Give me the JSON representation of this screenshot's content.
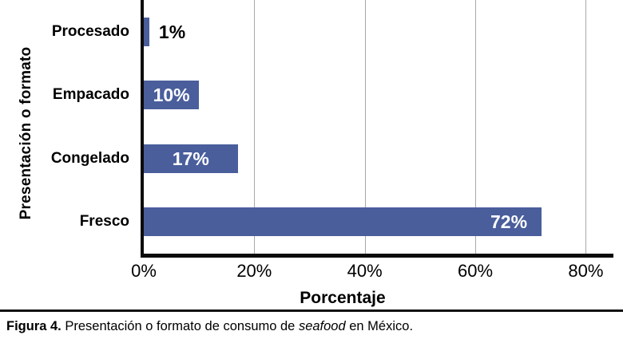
{
  "figure": {
    "caption": {
      "label": "Figura 4.",
      "text_before": " Presentación o formato de consumo de ",
      "italic_term": "seafood",
      "text_after": " en México."
    }
  },
  "chart_data": {
    "type": "bar",
    "orientation": "horizontal",
    "title": "",
    "categories": [
      "Procesado",
      "Empacado",
      "Congelado",
      "Fresco"
    ],
    "values": [
      1,
      10,
      17,
      72
    ],
    "value_labels": [
      "1%",
      "10%",
      "17%",
      "72%"
    ],
    "xlabel": "Porcentaje",
    "ylabel": "Presentación o formato",
    "x_ticks": [
      "0%",
      "20%",
      "40%",
      "60%",
      "80%"
    ],
    "x_tick_values": [
      0,
      20,
      40,
      60,
      80
    ],
    "xlim": [
      0,
      85
    ],
    "grid": "vertical gridlines at x ticks, behind bars",
    "legend": "none",
    "colors": {
      "bar_fill": "#4A5E9C",
      "value_label_inside": "#FFFFFF",
      "value_label_outside": "#000000",
      "axis_line": "#0A0A0A",
      "gridline": "#A8A8A8",
      "background": "#FFFFFF"
    }
  }
}
